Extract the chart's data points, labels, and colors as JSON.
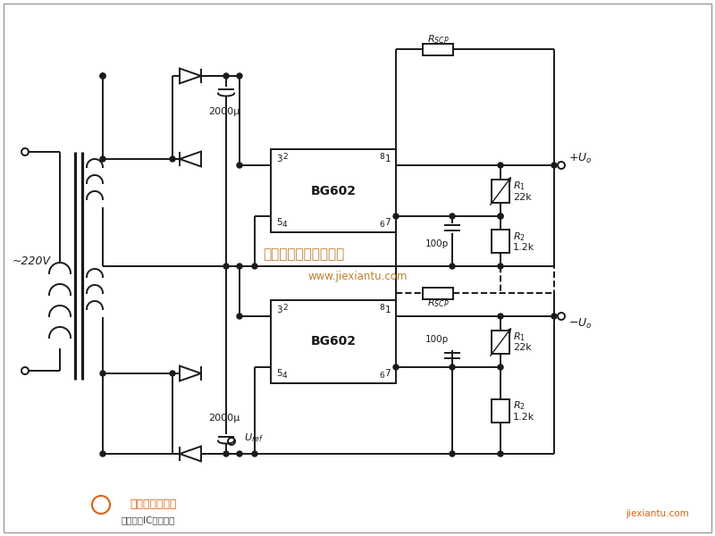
{
  "bg_color": "#ffffff",
  "line_color": "#1a1a1a",
  "lw": 1.4,
  "fig_w": 8.0,
  "fig_h": 6.0,
  "dpi": 100,
  "watermark1": "杭州将睿科技有限公司",
  "watermark2": "www.jiexiantu.com",
  "label_220v": "~220V",
  "label_2000u": "2000μ",
  "label_Uref": "U_ref",
  "label_plus_Uo": "+U_o",
  "label_minus_Uo": "-U_o",
  "label_BG602": "BG602",
  "label_R1": "R_1",
  "label_22k": "22k",
  "label_R2": "R_2",
  "label_12k": "1.2k",
  "label_Rscp": "R_SCP",
  "label_100p": "100p",
  "border_color": "#888888",
  "bottom_text1": "维库电子市场网",
  "bottom_text2": "全球最大IC采购网站",
  "bottom_text3": "jiexiantu.com",
  "logo_color": "#e06010"
}
